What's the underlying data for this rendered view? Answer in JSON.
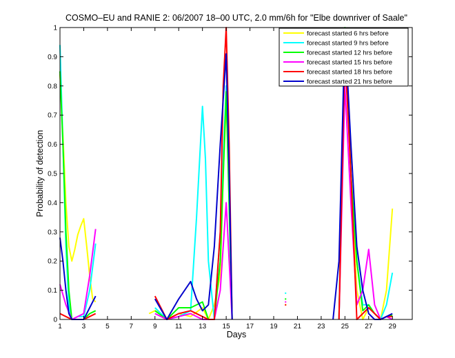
{
  "chart_data": {
    "type": "line",
    "title": "COSMO–EU and RANIE 2: 06/2007 18–00 UTC, 2.0 mm/6h for \"Elbe downriver of Saale\"",
    "xlabel": "Days",
    "ylabel": "Probability of detection",
    "xlim": [
      1,
      30.67
    ],
    "ylim": [
      0,
      1
    ],
    "xticks": [
      1,
      3,
      5,
      7,
      9,
      11,
      13,
      15,
      17,
      19,
      21,
      23,
      25,
      27,
      29
    ],
    "yticks": [
      0,
      0.1,
      0.2,
      0.3,
      0.4,
      0.5,
      0.6,
      0.7,
      0.8,
      0.9,
      1
    ],
    "ytick_labels": [
      "0",
      "0.1",
      "0.2",
      "0.3",
      "0.4",
      "0.5",
      "0.6",
      "0.7",
      "0.8",
      "0.9",
      "1"
    ],
    "grid": false,
    "legend_position": "top-right",
    "x_step": 0.25,
    "series": [
      {
        "name": "forecast started 6 hrs before",
        "color": "#ffff00",
        "segments": [
          [
            [
              1,
              0.84
            ],
            [
              1.25,
              0.63
            ],
            [
              1.5,
              0.4
            ],
            [
              1.75,
              0.25
            ],
            [
              2,
              0.2
            ],
            [
              2.25,
              0.24
            ],
            [
              2.5,
              0.29
            ],
            [
              2.75,
              0.32
            ],
            [
              3,
              0.345
            ],
            [
              3.25,
              0.25
            ],
            [
              3.5,
              0.15
            ],
            [
              3.75,
              0.07
            ],
            [
              4,
              0.06
            ]
          ],
          [
            [
              8.5,
              0.02
            ],
            [
              9,
              0.03
            ],
            [
              9.5,
              0.02
            ],
            [
              10,
              0.0
            ],
            [
              11,
              0.02
            ],
            [
              12,
              0.01
            ],
            [
              13,
              0.04
            ],
            [
              13.5,
              0.0
            ],
            [
              14,
              0.05
            ],
            [
              14.5,
              0.15
            ],
            [
              14.75,
              0.5
            ],
            [
              15,
              0.74
            ],
            [
              15.25,
              0.5
            ],
            [
              15.5,
              0.0
            ]
          ],
          [
            [
              24.5,
              0.0
            ],
            [
              25,
              0.92
            ],
            [
              25.5,
              0.5
            ],
            [
              26,
              0.1
            ],
            [
              26.5,
              0.0
            ],
            [
              27,
              0.04
            ],
            [
              27.5,
              0.02
            ],
            [
              28,
              0.0
            ],
            [
              28.5,
              0.1
            ],
            [
              29,
              0.38
            ]
          ]
        ],
        "points": [
          [
            20,
            0.05
          ]
        ]
      },
      {
        "name": "forecast started 9 hrs before",
        "color": "#00ffff",
        "segments": [
          [
            [
              1,
              0.94
            ],
            [
              1.25,
              0.6
            ],
            [
              1.5,
              0.25
            ],
            [
              1.75,
              0.05
            ],
            [
              2,
              0.0
            ],
            [
              2.5,
              0.01
            ],
            [
              3,
              0.01
            ],
            [
              3.5,
              0.1
            ],
            [
              4,
              0.26
            ]
          ],
          [
            [
              9,
              0.04
            ],
            [
              10,
              0.0
            ],
            [
              11,
              0.01
            ],
            [
              12,
              0.03
            ],
            [
              12.5,
              0.35
            ],
            [
              13,
              0.73
            ],
            [
              13.25,
              0.55
            ],
            [
              13.5,
              0.2
            ],
            [
              14,
              0.0
            ],
            [
              14.5,
              0.3
            ],
            [
              15,
              0.8
            ],
            [
              15.5,
              0.0
            ]
          ],
          [
            [
              24.5,
              0.0
            ],
            [
              25,
              0.99
            ],
            [
              25.5,
              0.5
            ],
            [
              26,
              0.2
            ],
            [
              26.5,
              0.05
            ],
            [
              27,
              0.05
            ],
            [
              27.5,
              0.02
            ],
            [
              28,
              0.0
            ],
            [
              28.5,
              0.05
            ],
            [
              29,
              0.16
            ]
          ]
        ],
        "points": [
          [
            20,
            0.09
          ]
        ]
      },
      {
        "name": "forecast started 12 hrs before",
        "color": "#00ff00",
        "segments": [
          [
            [
              1,
              0.85
            ],
            [
              1.25,
              0.6
            ],
            [
              1.5,
              0.3
            ],
            [
              1.75,
              0.1
            ],
            [
              2,
              0.0
            ],
            [
              2.5,
              0.0
            ],
            [
              3,
              0.0
            ],
            [
              3.5,
              0.02
            ],
            [
              4,
              0.03
            ]
          ],
          [
            [
              9,
              0.03
            ],
            [
              10,
              0.0
            ],
            [
              11,
              0.04
            ],
            [
              12,
              0.04
            ],
            [
              13,
              0.06
            ],
            [
              13.5,
              0.0
            ],
            [
              14,
              0.0
            ],
            [
              14.5,
              0.2
            ],
            [
              15,
              0.78
            ],
            [
              15.5,
              0.0
            ]
          ],
          [
            [
              24.5,
              0.0
            ],
            [
              25,
              1.0
            ],
            [
              25.5,
              0.5
            ],
            [
              26,
              0.2
            ],
            [
              26.5,
              0.03
            ],
            [
              27,
              0.05
            ],
            [
              27.5,
              0.02
            ],
            [
              28,
              0.0
            ],
            [
              28.5,
              0.01
            ],
            [
              29,
              0.015
            ]
          ]
        ],
        "points": [
          [
            20,
            0.07
          ]
        ]
      },
      {
        "name": "forecast started 15 hrs before",
        "color": "#ff00ff",
        "segments": [
          [
            [
              1,
              0.12
            ],
            [
              1.5,
              0.05
            ],
            [
              2,
              0.0
            ],
            [
              2.5,
              0.01
            ],
            [
              3,
              0.02
            ],
            [
              3.5,
              0.15
            ],
            [
              4,
              0.31
            ]
          ],
          [
            [
              9,
              0.02
            ],
            [
              10,
              0.0
            ],
            [
              11,
              0.01
            ],
            [
              12,
              0.02
            ],
            [
              13,
              0.0
            ],
            [
              14,
              0.0
            ],
            [
              14.5,
              0.1
            ],
            [
              15,
              0.4
            ],
            [
              15.5,
              0.0
            ]
          ],
          [
            [
              24.5,
              0.0
            ],
            [
              25,
              0.8
            ],
            [
              25.5,
              0.4
            ],
            [
              26,
              0.05
            ],
            [
              26.5,
              0.1
            ],
            [
              27,
              0.24
            ],
            [
              27.5,
              0.05
            ],
            [
              28,
              0.0
            ],
            [
              28.5,
              0.01
            ],
            [
              29,
              0.0
            ]
          ]
        ],
        "points": [
          [
            20,
            0.06
          ]
        ]
      },
      {
        "name": "forecast started 18 hrs before",
        "color": "#ff0000",
        "segments": [
          [
            [
              1,
              0.02
            ],
            [
              1.5,
              0.01
            ],
            [
              2,
              0.0
            ],
            [
              3,
              0.0
            ],
            [
              3.5,
              0.01
            ],
            [
              4,
              0.02
            ]
          ],
          [
            [
              9,
              0.08
            ],
            [
              10,
              0.0
            ],
            [
              11,
              0.02
            ],
            [
              12,
              0.03
            ],
            [
              13,
              0.01
            ],
            [
              13.5,
              0.0
            ],
            [
              14,
              0.0
            ],
            [
              14.5,
              0.3
            ],
            [
              14.75,
              0.8
            ],
            [
              15,
              1.0
            ],
            [
              15.25,
              0.6
            ],
            [
              15.5,
              0.0
            ]
          ],
          [
            [
              24.5,
              0.0
            ],
            [
              25,
              0.92
            ],
            [
              25.5,
              0.5
            ],
            [
              26,
              0.0
            ],
            [
              27,
              0.04
            ],
            [
              27.5,
              0.02
            ],
            [
              28,
              0.0
            ],
            [
              28.5,
              0.01
            ],
            [
              29,
              0.01
            ]
          ]
        ],
        "points": [
          [
            20,
            0.05
          ]
        ]
      },
      {
        "name": "forecast started 21 hrs before",
        "color": "#0000cc",
        "segments": [
          [
            [
              1,
              0.28
            ],
            [
              1.25,
              0.2
            ],
            [
              1.5,
              0.1
            ],
            [
              1.75,
              0.02
            ],
            [
              2,
              0.0
            ],
            [
              2.5,
              0.0
            ],
            [
              3,
              0.0
            ],
            [
              3.5,
              0.04
            ],
            [
              4,
              0.08
            ]
          ],
          [
            [
              9,
              0.07
            ],
            [
              10,
              0.0
            ],
            [
              11,
              0.07
            ],
            [
              12,
              0.13
            ],
            [
              12.5,
              0.07
            ],
            [
              13,
              0.03
            ],
            [
              13.5,
              0.05
            ],
            [
              14,
              0.25
            ],
            [
              14.5,
              0.6
            ],
            [
              15,
              0.91
            ],
            [
              15.25,
              0.5
            ],
            [
              15.5,
              0.0
            ]
          ],
          [
            [
              24,
              0.0
            ],
            [
              24.5,
              0.2
            ],
            [
              25,
              0.99
            ],
            [
              25.5,
              0.6
            ],
            [
              26,
              0.25
            ],
            [
              26.5,
              0.1
            ],
            [
              27,
              0.02
            ],
            [
              27.5,
              0.0
            ],
            [
              28,
              0.0
            ],
            [
              28.5,
              0.01
            ],
            [
              29,
              0.02
            ]
          ]
        ],
        "points": []
      }
    ]
  }
}
